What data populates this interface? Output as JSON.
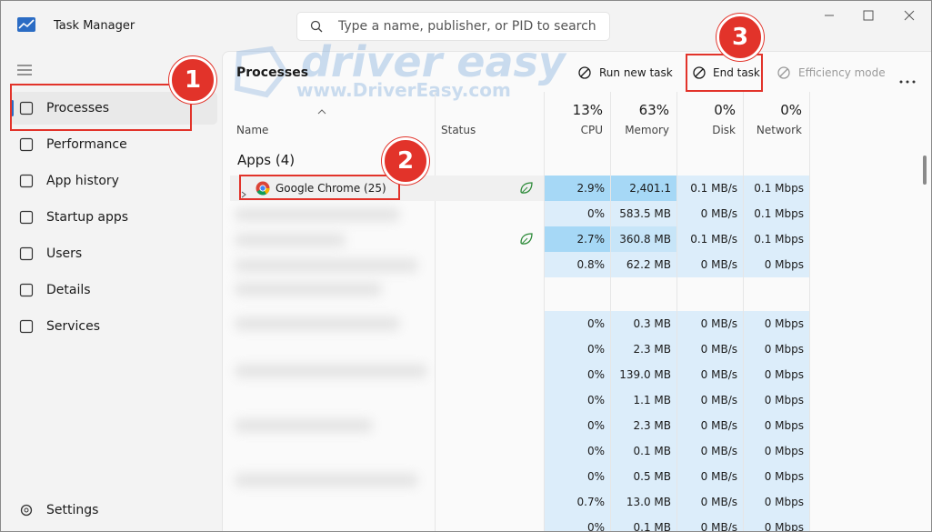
{
  "window": {
    "title": "Task Manager",
    "search_placeholder": "Type a name, publisher, or PID to search"
  },
  "watermark": {
    "brand": "driver easy",
    "url": "www.DriverEasy.com"
  },
  "sidebar": {
    "items": [
      "Processes",
      "Performance",
      "App history",
      "Startup apps",
      "Users",
      "Details",
      "Services"
    ],
    "settings": "Settings"
  },
  "toolbar": {
    "title": "Processes",
    "buttons": [
      "Run new task",
      "End task",
      "Efficiency mode"
    ]
  },
  "columns": {
    "name": "Name",
    "status": "Status",
    "usage": [
      {
        "percent": "13%",
        "label": "CPU"
      },
      {
        "percent": "63%",
        "label": "Memory"
      },
      {
        "percent": "0%",
        "label": "Disk"
      },
      {
        "percent": "0%",
        "label": "Network"
      }
    ]
  },
  "group": "Apps (4)",
  "rows": [
    {
      "name": "Google Chrome (25)",
      "cells": [
        "2.9%",
        "2,401.1 MB",
        "0.1 MB/s",
        "0.1 Mbps"
      ]
    },
    {
      "cells": [
        "0%",
        "583.5 MB",
        "0 MB/s",
        "0.1 Mbps"
      ]
    },
    {
      "cells": [
        "2.7%",
        "360.8 MB",
        "0.1 MB/s",
        "0.1 Mbps"
      ]
    },
    {
      "cells": [
        "0.8%",
        "62.2 MB",
        "0 MB/s",
        "0 Mbps"
      ]
    },
    {
      "cells": [
        "0%",
        "0.3 MB",
        "0 MB/s",
        "0 Mbps"
      ]
    },
    {
      "cells": [
        "0%",
        "2.3 MB",
        "0 MB/s",
        "0 Mbps"
      ]
    },
    {
      "cells": [
        "0%",
        "139.0 MB",
        "0 MB/s",
        "0 Mbps"
      ]
    },
    {
      "cells": [
        "0%",
        "1.1 MB",
        "0 MB/s",
        "0 Mbps"
      ]
    },
    {
      "cells": [
        "0%",
        "2.3 MB",
        "0 MB/s",
        "0 Mbps"
      ]
    },
    {
      "cells": [
        "0%",
        "0.1 MB",
        "0 MB/s",
        "0 Mbps"
      ]
    },
    {
      "cells": [
        "0%",
        "0.5 MB",
        "0 MB/s",
        "0 Mbps"
      ]
    },
    {
      "cells": [
        "0.7%",
        "13.0 MB",
        "0 MB/s",
        "0 Mbps"
      ]
    },
    {
      "cells": [
        "0%",
        "0.1 MB",
        "0 MB/s",
        "0 Mbps"
      ]
    }
  ],
  "annotations": [
    "1",
    "2",
    "3"
  ]
}
